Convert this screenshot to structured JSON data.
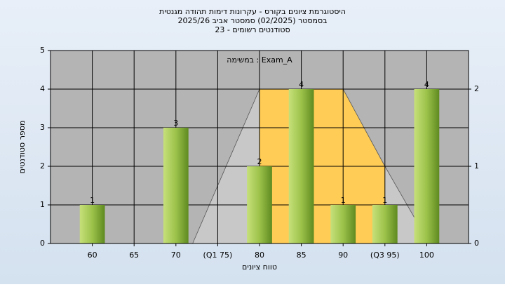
{
  "chart_data": {
    "type": "histogram",
    "title": "היסטוגרמת ציונים בקורס - עקרונות דימות תהודה מגנטית",
    "subtitle": "בסמסטר  (02/2025)  סמסטר אביב 2025/26",
    "subtitle2": "סטודנטים רשומים - 23",
    "annotation": "במשימה : Exam_A",
    "xlabel": "טווח ציונים",
    "ylabel": "מספר סטודנטים",
    "x": [
      60,
      65,
      70,
      75,
      80,
      85,
      90,
      95,
      100
    ],
    "values": [
      1,
      0,
      3,
      0,
      2,
      4,
      1,
      1,
      4
    ],
    "xlim": [
      55,
      105
    ],
    "xticks": [
      60,
      65,
      70,
      {
        "value": 75,
        "label": "(Q1 75)"
      },
      80,
      85,
      90,
      {
        "value": 95,
        "label": "(Q3 95)"
      },
      100
    ],
    "ylim": [
      0,
      5
    ],
    "yticks": [
      0,
      1,
      2,
      3,
      4,
      5
    ],
    "y2lim": [
      0,
      2.5
    ],
    "y2ticks": [
      0,
      1,
      2
    ],
    "grid": true,
    "area": {
      "axis": "y2",
      "color": "#c8c8c8",
      "x": [
        72,
        80,
        90,
        95,
        98.5
      ],
      "values": [
        0,
        2,
        2,
        1,
        0.34
      ]
    },
    "highlight_x": [
      80,
      95
    ],
    "highlight_color": "#ffcc55"
  }
}
